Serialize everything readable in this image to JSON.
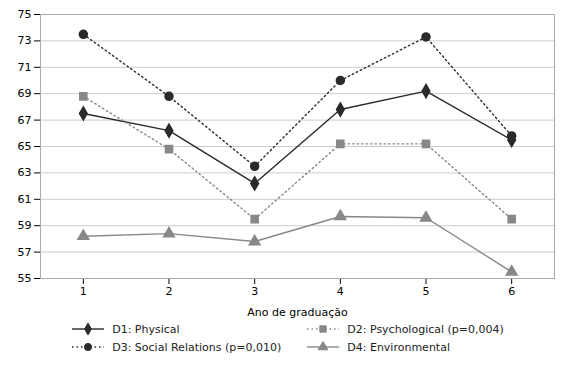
{
  "chart_data": {
    "type": "line",
    "x": [
      1,
      2,
      3,
      4,
      5,
      6
    ],
    "xlabel": "Ano de graduação",
    "xlim": [
      0.5,
      6.5
    ],
    "xticks": [
      1,
      2,
      3,
      4,
      5,
      6
    ],
    "ylim": [
      55,
      75
    ],
    "yticks": [
      55,
      57,
      59,
      61,
      63,
      65,
      67,
      69,
      71,
      73,
      75
    ],
    "grid": true,
    "legend": "bottom",
    "series": [
      {
        "name": "D1: Physical",
        "color": "#2a2a2a",
        "marker": "diamond",
        "line_style": "solid",
        "values": [
          67.5,
          66.2,
          62.2,
          67.8,
          69.2,
          65.5
        ]
      },
      {
        "name": "D2: Psychological (p=0,004)",
        "color": "#888888",
        "marker": "square",
        "line_style": "dotted",
        "values": [
          68.8,
          64.8,
          59.5,
          65.2,
          65.2,
          59.5
        ]
      },
      {
        "name": "D3: Social Relations (p=0,010)",
        "color": "#2a2a2a",
        "marker": "circle",
        "line_style": "dotted",
        "values": [
          73.5,
          68.8,
          63.5,
          70.0,
          73.3,
          65.8
        ]
      },
      {
        "name": "D4: Environmental",
        "color": "#888888",
        "marker": "triangle",
        "line_style": "solid",
        "values": [
          58.2,
          58.4,
          57.8,
          59.7,
          59.6,
          55.5
        ]
      }
    ]
  }
}
